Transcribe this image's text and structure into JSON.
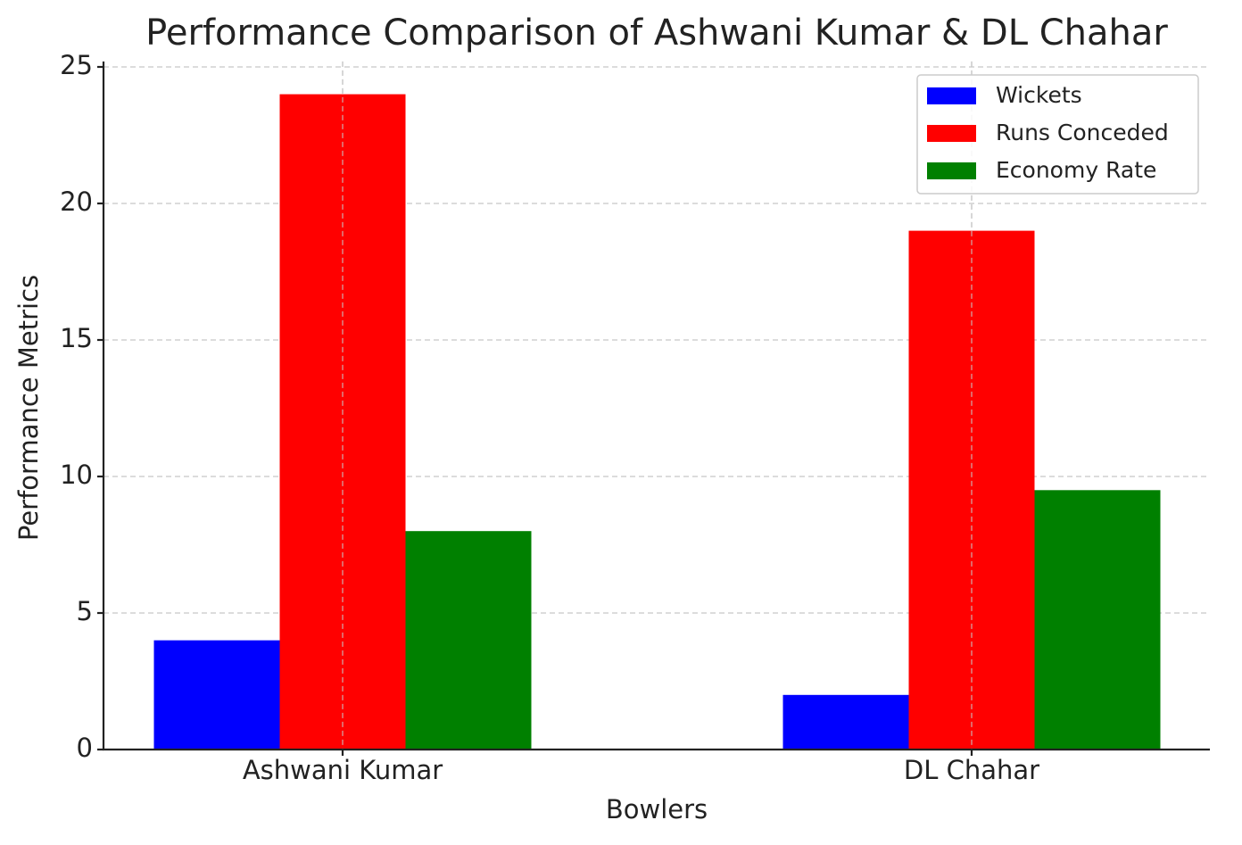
{
  "chart_data": {
    "type": "bar",
    "title": "Performance Comparison of Ashwani Kumar & DL Chahar",
    "x_label": "Bowlers",
    "y_label": "Performance Metrics",
    "categories": [
      "Ashwani Kumar",
      "DL Chahar"
    ],
    "series": [
      {
        "name": "Wickets",
        "color": "#0000ff",
        "values": [
          4,
          2
        ]
      },
      {
        "name": "Runs Conceded",
        "color": "#ff0000",
        "values": [
          24,
          19
        ]
      },
      {
        "name": "Economy Rate",
        "color": "#008000",
        "values": [
          8,
          9.5
        ]
      }
    ],
    "ylim": [
      0,
      25.2
    ],
    "yticks": [
      0,
      5,
      10,
      15,
      20,
      25
    ],
    "grid": true,
    "legend": "upper-right"
  }
}
